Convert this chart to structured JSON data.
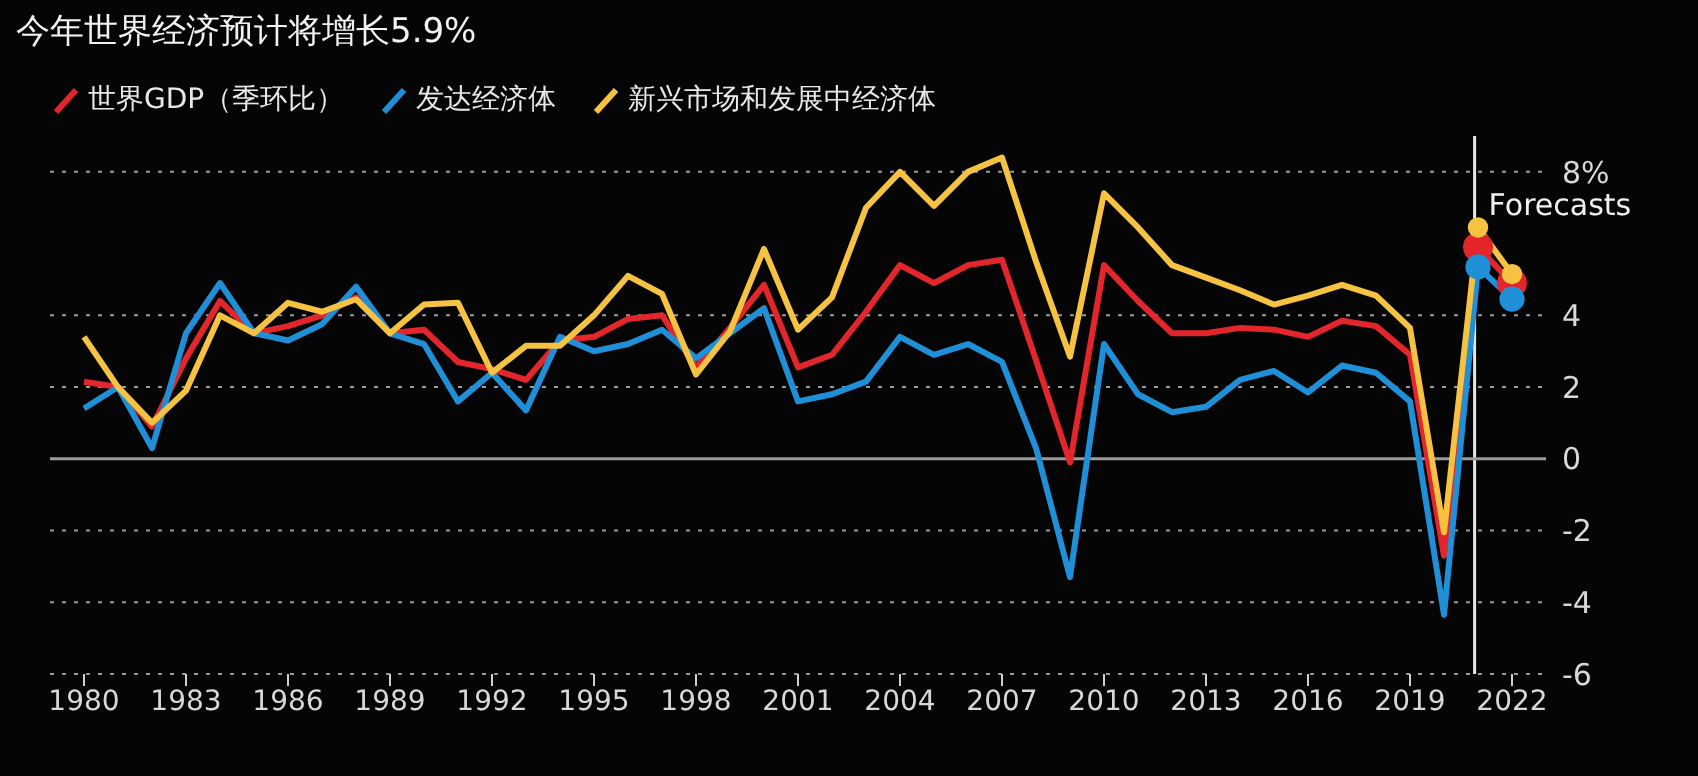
{
  "chart_data": {
    "type": "line",
    "title": "今年世界经济预计将增长5.9%",
    "x": [
      1980,
      1981,
      1982,
      1983,
      1984,
      1985,
      1986,
      1987,
      1988,
      1989,
      1990,
      1991,
      1992,
      1993,
      1994,
      1995,
      1996,
      1997,
      1998,
      1999,
      2000,
      2001,
      2002,
      2003,
      2004,
      2005,
      2006,
      2007,
      2008,
      2009,
      2010,
      2011,
      2012,
      2013,
      2014,
      2015,
      2016,
      2017,
      2018,
      2019,
      2020,
      2021,
      2022
    ],
    "series": [
      {
        "name": "世界GDP（季环比）",
        "color": "#e3262b",
        "values": [
          2.15,
          2.0,
          0.9,
          2.8,
          4.4,
          3.5,
          3.7,
          4.0,
          4.5,
          3.5,
          3.6,
          2.7,
          2.5,
          2.2,
          3.3,
          3.4,
          3.9,
          4.0,
          2.55,
          3.65,
          4.85,
          2.55,
          2.9,
          4.1,
          5.4,
          4.9,
          5.4,
          5.55,
          2.75,
          -0.1,
          5.4,
          4.4,
          3.5,
          3.5,
          3.65,
          3.6,
          3.4,
          3.85,
          3.7,
          2.9,
          -2.7,
          5.9,
          4.9
        ]
      },
      {
        "name": "发达经济体",
        "color": "#1f8fd8",
        "values": [
          1.4,
          2.0,
          0.3,
          3.5,
          4.9,
          3.5,
          3.3,
          3.75,
          4.8,
          3.5,
          3.2,
          1.6,
          2.4,
          1.35,
          3.4,
          3.0,
          3.2,
          3.6,
          2.8,
          3.5,
          4.2,
          1.6,
          1.8,
          2.15,
          3.4,
          2.9,
          3.2,
          2.7,
          0.3,
          -3.3,
          3.2,
          1.8,
          1.3,
          1.45,
          2.2,
          2.45,
          1.85,
          2.6,
          2.4,
          1.6,
          -4.35,
          5.35,
          4.45
        ]
      },
      {
        "name": "新兴市场和发展中经济体",
        "color": "#f5c242",
        "values": [
          3.4,
          2.0,
          1.0,
          1.9,
          4.0,
          3.5,
          4.35,
          4.1,
          4.45,
          3.5,
          4.3,
          4.35,
          2.4,
          3.15,
          3.15,
          4.0,
          5.1,
          4.6,
          2.35,
          3.55,
          5.85,
          3.6,
          4.5,
          7.0,
          8.0,
          7.05,
          8.0,
          8.4,
          5.5,
          2.85,
          7.4,
          6.45,
          5.4,
          5.05,
          4.7,
          4.3,
          4.55,
          4.85,
          4.55,
          3.65,
          -2.05,
          6.45,
          5.15
        ]
      },
      {
        "type": "scatter",
        "marker": "circle",
        "color": "#e3262b",
        "values": [
          null,
          null,
          null,
          null,
          null,
          null,
          null,
          null,
          null,
          null,
          null,
          null,
          null,
          null,
          null,
          null,
          null,
          null,
          null,
          null,
          null,
          null,
          null,
          null,
          null,
          null,
          null,
          null,
          null,
          null,
          null,
          null,
          null,
          null,
          null,
          null,
          null,
          null,
          null,
          null,
          null,
          5.9,
          4.9
        ]
      },
      {
        "type": "scatter",
        "marker": "circle",
        "color": "#1f8fd8",
        "values": [
          null,
          null,
          null,
          null,
          null,
          null,
          null,
          null,
          null,
          null,
          null,
          null,
          null,
          null,
          null,
          null,
          null,
          null,
          null,
          null,
          null,
          null,
          null,
          null,
          null,
          null,
          null,
          null,
          null,
          null,
          null,
          null,
          null,
          null,
          null,
          null,
          null,
          null,
          null,
          null,
          null,
          5.35,
          4.45
        ]
      },
      {
        "type": "scatter",
        "marker": "circle",
        "color": "#f5c242",
        "values": [
          null,
          null,
          null,
          null,
          null,
          null,
          null,
          null,
          null,
          null,
          null,
          null,
          null,
          null,
          null,
          null,
          null,
          null,
          null,
          null,
          null,
          null,
          null,
          null,
          null,
          null,
          null,
          null,
          null,
          null,
          null,
          null,
          null,
          null,
          null,
          null,
          null,
          null,
          null,
          null,
          null,
          6.45,
          5.15
        ]
      }
    ],
    "xlim": [
      1979,
      2023
    ],
    "xticks": [
      1980,
      1983,
      1986,
      1989,
      1992,
      1995,
      1998,
      2001,
      2004,
      2007,
      2010,
      2013,
      2016,
      2019,
      2022
    ],
    "ylim": [
      -6,
      9
    ],
    "yticks": [
      -6,
      -4,
      -2,
      0,
      2,
      4,
      {
        "value": 8,
        "label": "8%"
      }
    ],
    "grid": "y",
    "legend": "top left",
    "marker": "none",
    "ref_lines": [
      {
        "axis": "x",
        "value": 2020.9,
        "label": "Forecasts",
        "color": "#e6e6e6"
      },
      {
        "axis": "y",
        "value": 0,
        "color": "#9a9a9a"
      }
    ]
  }
}
